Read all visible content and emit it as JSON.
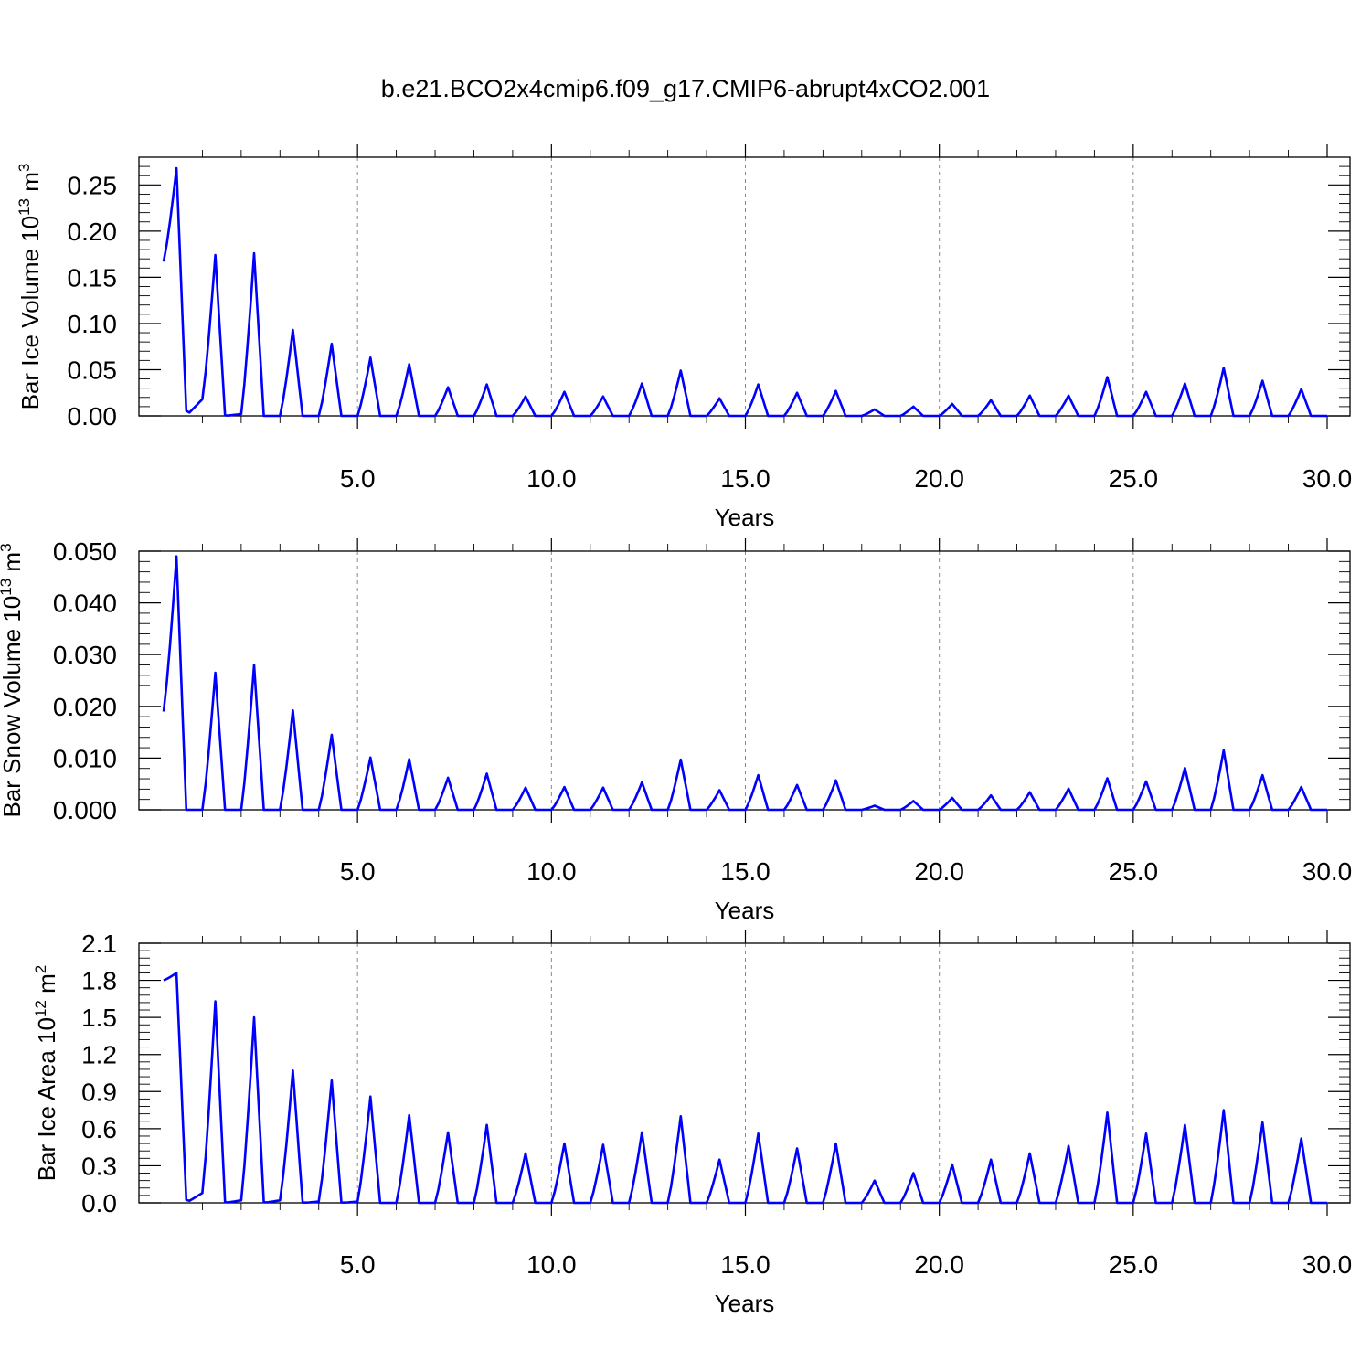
{
  "figure_title": "b.e21.BCO2x4cmip6.f09_g17.CMIP6-abrupt4xCO2.001",
  "series_color": "#0000ff",
  "chart_data": [
    {
      "type": "line",
      "id": "ice_volume",
      "title": "",
      "xlabel": "Years",
      "ylabel_main": "Bar Ice Volume 10",
      "ylabel_sup": "13",
      "ylabel_unit": " m",
      "ylabel_unit_sup": "3",
      "xlim": [
        0.0,
        30.0
      ],
      "ylim": [
        0.0,
        0.28
      ],
      "xticks": [
        "5.0",
        "10.0",
        "15.0",
        "20.0",
        "25.0",
        "30.0"
      ],
      "yticks": [
        "0.00",
        "0.05",
        "0.10",
        "0.15",
        "0.20",
        "0.25"
      ],
      "seasonal_peaks": [
        0.268,
        0.174,
        0.176,
        0.093,
        0.078,
        0.063,
        0.056,
        0.031,
        0.034,
        0.021,
        0.026,
        0.021,
        0.035,
        0.049,
        0.019,
        0.034,
        0.025,
        0.027,
        0.007,
        0.01,
        0.013,
        0.017,
        0.022,
        0.022,
        0.042,
        0.026,
        0.035,
        0.052,
        0.038,
        0.029
      ],
      "seasonal_minima": [
        0.167,
        0.018,
        0.002,
        0.0,
        0.0,
        0.0,
        0.0,
        0.0,
        0.0,
        0.0,
        0.0,
        0.0,
        0.0,
        0.0,
        0.0,
        0.0,
        0.0,
        0.0,
        0.0,
        0.0,
        0.0,
        0.0,
        0.0,
        0.0,
        0.0,
        0.0,
        0.0,
        0.0,
        0.0,
        0.0
      ],
      "series": [
        {
          "name": "Bar Ice Volume"
        }
      ]
    },
    {
      "type": "line",
      "id": "snow_volume",
      "title": "",
      "xlabel": "Years",
      "ylabel_main": "Bar Snow Volume 10",
      "ylabel_sup": "13",
      "ylabel_unit": " m",
      "ylabel_unit_sup": "3",
      "xlim": [
        0.0,
        30.0
      ],
      "ylim": [
        0.0,
        0.05
      ],
      "xticks": [
        "5.0",
        "10.0",
        "15.0",
        "20.0",
        "25.0",
        "30.0"
      ],
      "yticks": [
        "0.000",
        "0.010",
        "0.020",
        "0.030",
        "0.040",
        "0.050"
      ],
      "seasonal_peaks": [
        0.049,
        0.0265,
        0.028,
        0.0192,
        0.0145,
        0.0101,
        0.0098,
        0.0062,
        0.007,
        0.0043,
        0.0044,
        0.0043,
        0.0053,
        0.0097,
        0.0038,
        0.0067,
        0.0048,
        0.0057,
        0.0008,
        0.0017,
        0.0023,
        0.0028,
        0.0034,
        0.0041,
        0.0061,
        0.0055,
        0.0081,
        0.0115,
        0.0067,
        0.0044
      ],
      "seasonal_minima": [
        0.019,
        0.0,
        0.0,
        0.0,
        0.0,
        0.0,
        0.0,
        0.0,
        0.0,
        0.0,
        0.0,
        0.0,
        0.0,
        0.0,
        0.0,
        0.0,
        0.0,
        0.0,
        0.0,
        0.0,
        0.0,
        0.0,
        0.0,
        0.0,
        0.0,
        0.0,
        0.0,
        0.0,
        0.0,
        0.0
      ],
      "series": [
        {
          "name": "Bar Snow Volume"
        }
      ]
    },
    {
      "type": "line",
      "id": "ice_area",
      "title": "",
      "xlabel": "Years",
      "ylabel_main": "Bar Ice Area 10",
      "ylabel_sup": "12",
      "ylabel_unit": " m",
      "ylabel_unit_sup": "2",
      "xlim": [
        0.0,
        30.0
      ],
      "ylim": [
        0.0,
        2.1
      ],
      "xticks": [
        "5.0",
        "10.0",
        "15.0",
        "20.0",
        "25.0",
        "30.0"
      ],
      "yticks": [
        "0.0",
        "0.3",
        "0.6",
        "0.9",
        "1.2",
        "1.5",
        "1.8",
        "2.1"
      ],
      "seasonal_peaks": [
        1.86,
        1.63,
        1.5,
        1.07,
        0.99,
        0.86,
        0.71,
        0.57,
        0.63,
        0.4,
        0.48,
        0.47,
        0.57,
        0.7,
        0.35,
        0.56,
        0.44,
        0.48,
        0.18,
        0.24,
        0.31,
        0.35,
        0.4,
        0.46,
        0.73,
        0.56,
        0.63,
        0.75,
        0.65,
        0.52
      ],
      "seasonal_minima": [
        1.8,
        0.08,
        0.02,
        0.02,
        0.01,
        0.01,
        0.0,
        0.0,
        0.0,
        0.0,
        0.0,
        0.0,
        0.0,
        0.0,
        0.0,
        0.0,
        0.0,
        0.0,
        0.0,
        0.0,
        0.0,
        0.0,
        0.0,
        0.0,
        0.0,
        0.0,
        0.0,
        0.0,
        0.0,
        0.0
      ],
      "series": [
        {
          "name": "Bar Ice Area"
        }
      ]
    }
  ]
}
